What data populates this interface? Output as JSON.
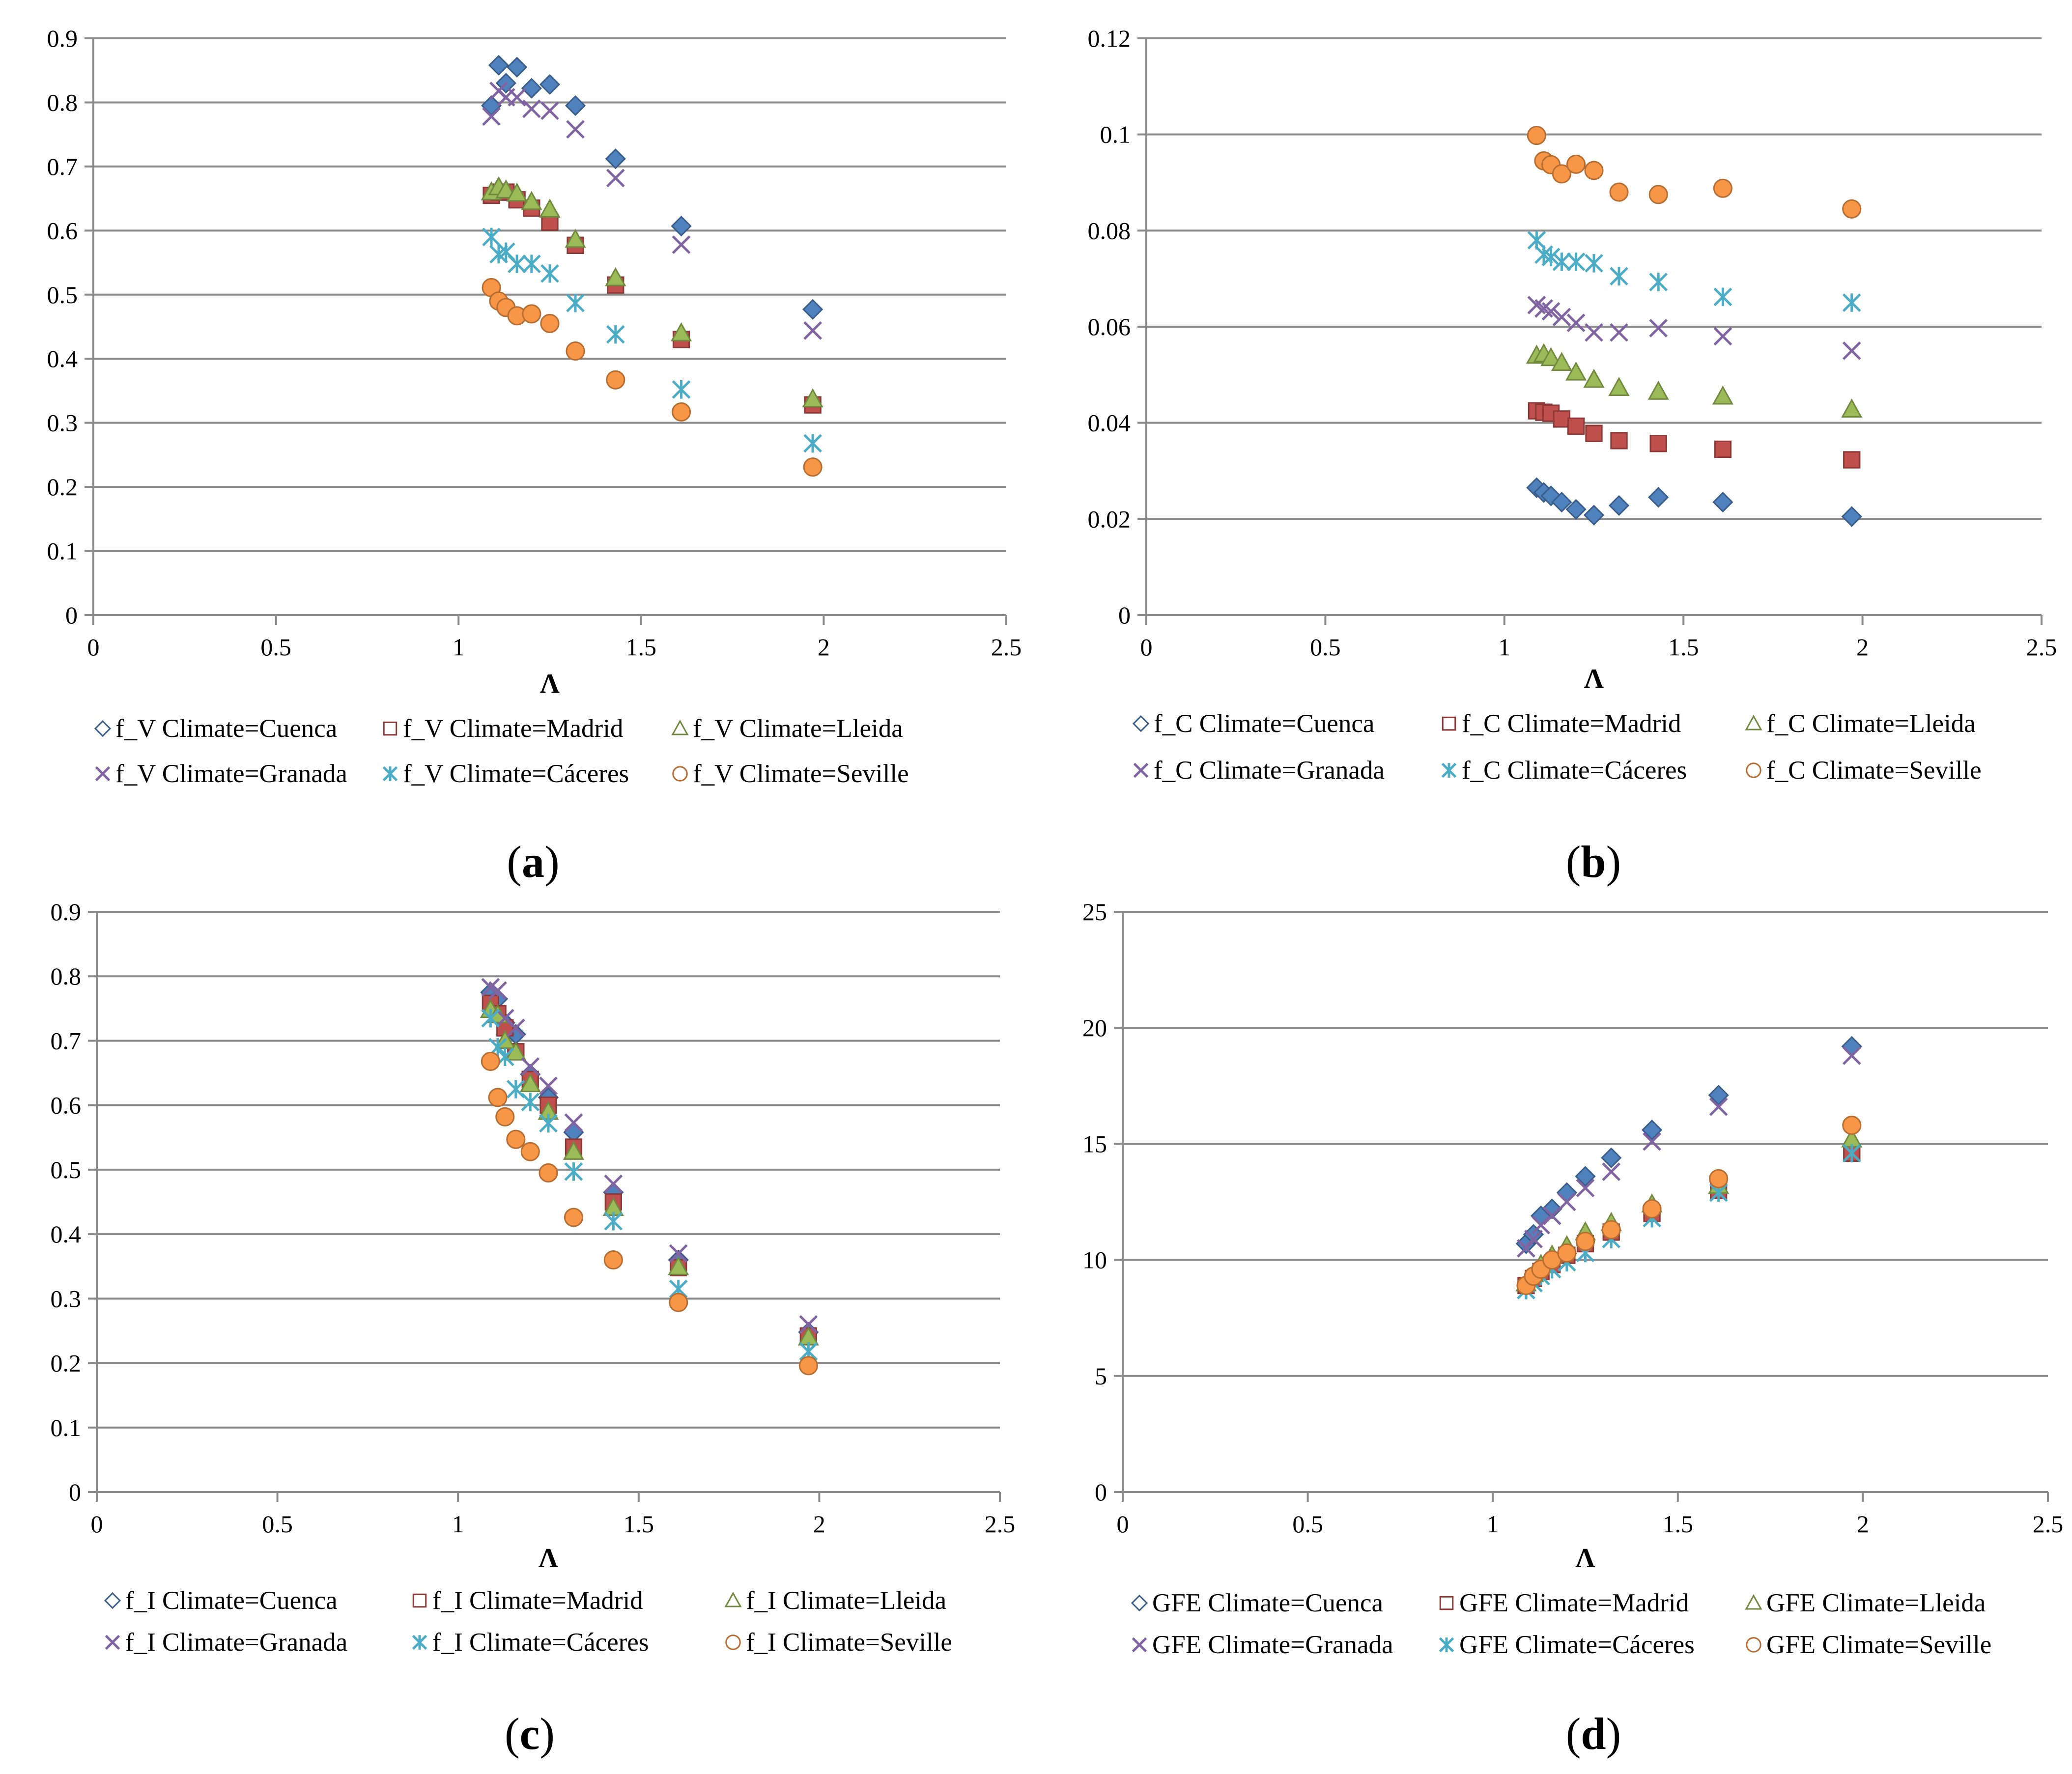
{
  "series_style": {
    "Cuenca": {
      "marker": "diamond-icon",
      "fill": "#4f81bd",
      "stroke": "#385d8a"
    },
    "Madrid": {
      "marker": "square-icon",
      "fill": "#c0504d",
      "stroke": "#8c3836"
    },
    "Lleida": {
      "marker": "triangle-icon",
      "fill": "#9bbb59",
      "stroke": "#71893f"
    },
    "Granada": {
      "marker": "x-icon",
      "fill": "none",
      "stroke": "#8064a2"
    },
    "Caceres": {
      "marker": "asterisk-icon",
      "fill": "none",
      "stroke": "#4bacc6"
    },
    "Seville": {
      "marker": "circle-icon",
      "fill": "#f79646",
      "stroke": "#b66d31"
    }
  },
  "chart_data": [
    {
      "id": "a",
      "type": "scatter",
      "panel_label": "(a)",
      "xlabel": "Λ",
      "xlim": [
        0,
        2.5
      ],
      "ylim": [
        0,
        0.9
      ],
      "xticks": [
        "0",
        "0.5",
        "1",
        "1.5",
        "2",
        "2.5"
      ],
      "yticks": [
        "0",
        "0.1",
        "0.2",
        "0.3",
        "0.4",
        "0.5",
        "0.6",
        "0.7",
        "0.8",
        "0.9"
      ],
      "legend": "bottom",
      "series": [
        {
          "key": "Cuenca",
          "name": "f_V Climate=Cuenca",
          "x": [
            1.09,
            1.11,
            1.13,
            1.16,
            1.2,
            1.25,
            1.32,
            1.43,
            1.61,
            1.97
          ],
          "y": [
            0.795,
            0.858,
            0.83,
            0.855,
            0.822,
            0.828,
            0.795,
            0.712,
            0.607,
            0.477
          ]
        },
        {
          "key": "Madrid",
          "name": "f_V Climate=Madrid",
          "x": [
            1.09,
            1.11,
            1.13,
            1.16,
            1.2,
            1.25,
            1.32,
            1.43,
            1.61,
            1.97
          ],
          "y": [
            0.655,
            0.66,
            0.66,
            0.648,
            0.635,
            0.613,
            0.577,
            0.515,
            0.43,
            0.328
          ]
        },
        {
          "key": "Lleida",
          "name": "f_V Climate=Lleida",
          "x": [
            1.09,
            1.11,
            1.13,
            1.16,
            1.2,
            1.25,
            1.32,
            1.43,
            1.61,
            1.97
          ],
          "y": [
            0.66,
            0.668,
            0.663,
            0.658,
            0.645,
            0.633,
            0.586,
            0.526,
            0.44,
            0.337
          ]
        },
        {
          "key": "Granada",
          "name": "f_V Climate=Granada",
          "x": [
            1.09,
            1.11,
            1.13,
            1.16,
            1.2,
            1.25,
            1.32,
            1.43,
            1.61,
            1.97
          ],
          "y": [
            0.778,
            0.818,
            0.808,
            0.808,
            0.79,
            0.787,
            0.758,
            0.682,
            0.578,
            0.444
          ]
        },
        {
          "key": "Caceres",
          "name": "f_V Climate=Cáceres",
          "x": [
            1.09,
            1.11,
            1.13,
            1.16,
            1.2,
            1.25,
            1.32,
            1.43,
            1.61,
            1.97
          ],
          "y": [
            0.59,
            0.563,
            0.567,
            0.548,
            0.548,
            0.533,
            0.487,
            0.438,
            0.352,
            0.268
          ]
        },
        {
          "key": "Seville",
          "name": "f_V Climate=Seville",
          "x": [
            1.09,
            1.11,
            1.13,
            1.16,
            1.2,
            1.25,
            1.32,
            1.43,
            1.61,
            1.97
          ],
          "y": [
            0.511,
            0.49,
            0.48,
            0.467,
            0.47,
            0.455,
            0.412,
            0.367,
            0.317,
            0.231
          ]
        }
      ]
    },
    {
      "id": "b",
      "type": "scatter",
      "panel_label": "(b)",
      "xlabel": "Λ",
      "xlim": [
        0,
        2.5
      ],
      "ylim": [
        0,
        0.12
      ],
      "xticks": [
        "0",
        "0.5",
        "1",
        "1.5",
        "2",
        "2.5"
      ],
      "yticks": [
        "0",
        "0.02",
        "0.04",
        "0.06",
        "0.08",
        "0.1",
        "0.12"
      ],
      "legend": "bottom",
      "series": [
        {
          "key": "Cuenca",
          "name": "f_C Climate=Cuenca",
          "x": [
            1.09,
            1.11,
            1.13,
            1.16,
            1.2,
            1.25,
            1.32,
            1.43,
            1.61,
            1.97
          ],
          "y": [
            0.0265,
            0.0255,
            0.0248,
            0.0235,
            0.022,
            0.0208,
            0.0228,
            0.0245,
            0.0235,
            0.0205
          ]
        },
        {
          "key": "Madrid",
          "name": "f_C Climate=Madrid",
          "x": [
            1.09,
            1.11,
            1.13,
            1.16,
            1.2,
            1.25,
            1.32,
            1.43,
            1.61,
            1.97
          ],
          "y": [
            0.0425,
            0.0422,
            0.042,
            0.0408,
            0.0393,
            0.0378,
            0.0363,
            0.0357,
            0.0345,
            0.0323
          ]
        },
        {
          "key": "Lleida",
          "name": "f_C Climate=Lleida",
          "x": [
            1.09,
            1.11,
            1.13,
            1.16,
            1.2,
            1.25,
            1.32,
            1.43,
            1.61,
            1.97
          ],
          "y": [
            0.054,
            0.0543,
            0.0535,
            0.0525,
            0.0505,
            0.049,
            0.0473,
            0.0465,
            0.0455,
            0.0428
          ]
        },
        {
          "key": "Granada",
          "name": "f_C Climate=Granada",
          "x": [
            1.09,
            1.11,
            1.13,
            1.16,
            1.2,
            1.25,
            1.32,
            1.43,
            1.61,
            1.97
          ],
          "y": [
            0.0645,
            0.0638,
            0.0632,
            0.062,
            0.0608,
            0.0588,
            0.0588,
            0.0597,
            0.058,
            0.055
          ]
        },
        {
          "key": "Caceres",
          "name": "f_C Climate=Cáceres",
          "x": [
            1.09,
            1.11,
            1.13,
            1.16,
            1.2,
            1.25,
            1.32,
            1.43,
            1.61,
            1.97
          ],
          "y": [
            0.078,
            0.075,
            0.0745,
            0.0735,
            0.0735,
            0.0732,
            0.0705,
            0.0693,
            0.0662,
            0.065
          ]
        },
        {
          "key": "Seville",
          "name": "f_C Climate=Seville",
          "x": [
            1.09,
            1.11,
            1.13,
            1.16,
            1.2,
            1.25,
            1.32,
            1.43,
            1.61,
            1.97
          ],
          "y": [
            0.0998,
            0.0945,
            0.0937,
            0.0918,
            0.0938,
            0.0925,
            0.088,
            0.0875,
            0.0888,
            0.0845
          ]
        }
      ]
    },
    {
      "id": "c",
      "type": "scatter",
      "panel_label": "(c)",
      "xlabel": "Λ",
      "xlim": [
        0,
        2.5
      ],
      "ylim": [
        0,
        0.9
      ],
      "xticks": [
        "0",
        "0.5",
        "1",
        "1.5",
        "2",
        "2.5"
      ],
      "yticks": [
        "0",
        "0.1",
        "0.2",
        "0.3",
        "0.4",
        "0.5",
        "0.6",
        "0.7",
        "0.8",
        "0.9"
      ],
      "legend": "bottom",
      "series": [
        {
          "key": "Cuenca",
          "name": "f_I Climate=Cuenca",
          "x": [
            1.09,
            1.11,
            1.13,
            1.16,
            1.2,
            1.25,
            1.32,
            1.43,
            1.61,
            1.97
          ],
          "y": [
            0.775,
            0.765,
            0.728,
            0.71,
            0.648,
            0.612,
            0.558,
            0.465,
            0.36,
            0.248
          ]
        },
        {
          "key": "Madrid",
          "name": "f_I Climate=Madrid",
          "x": [
            1.09,
            1.11,
            1.13,
            1.16,
            1.2,
            1.25,
            1.32,
            1.43,
            1.61,
            1.97
          ],
          "y": [
            0.758,
            0.742,
            0.72,
            0.683,
            0.64,
            0.6,
            0.535,
            0.45,
            0.348,
            0.242
          ]
        },
        {
          "key": "Lleida",
          "name": "f_I Climate=Lleida",
          "x": [
            1.09,
            1.11,
            1.13,
            1.16,
            1.2,
            1.25,
            1.32,
            1.43,
            1.61,
            1.97
          ],
          "y": [
            0.748,
            0.74,
            0.7,
            0.682,
            0.633,
            0.59,
            0.528,
            0.441,
            0.349,
            0.24
          ]
        },
        {
          "key": "Granada",
          "name": "f_I Climate=Granada",
          "x": [
            1.09,
            1.11,
            1.13,
            1.16,
            1.2,
            1.25,
            1.32,
            1.43,
            1.61,
            1.97
          ],
          "y": [
            0.783,
            0.778,
            0.735,
            0.72,
            0.66,
            0.63,
            0.573,
            0.478,
            0.37,
            0.26
          ]
        },
        {
          "key": "Caceres",
          "name": "f_I Climate=Cáceres",
          "x": [
            1.09,
            1.11,
            1.13,
            1.16,
            1.2,
            1.25,
            1.32,
            1.43,
            1.61,
            1.97
          ],
          "y": [
            0.735,
            0.69,
            0.675,
            0.625,
            0.605,
            0.572,
            0.497,
            0.42,
            0.315,
            0.218
          ]
        },
        {
          "key": "Seville",
          "name": "f_I Climate=Seville",
          "x": [
            1.09,
            1.11,
            1.13,
            1.16,
            1.2,
            1.25,
            1.32,
            1.43,
            1.61,
            1.97
          ],
          "y": [
            0.668,
            0.612,
            0.582,
            0.547,
            0.528,
            0.495,
            0.426,
            0.36,
            0.294,
            0.196
          ]
        }
      ]
    },
    {
      "id": "d",
      "type": "scatter",
      "panel_label": "(d)",
      "xlabel": "Λ",
      "xlim": [
        0,
        2.5
      ],
      "ylim": [
        0,
        25
      ],
      "xticks": [
        "0",
        "0.5",
        "1",
        "1.5",
        "2",
        "2.5"
      ],
      "yticks": [
        "0",
        "5",
        "10",
        "15",
        "20",
        "25"
      ],
      "legend": "bottom",
      "series": [
        {
          "key": "Cuenca",
          "name": "GFE Climate=Cuenca",
          "x": [
            1.09,
            1.11,
            1.13,
            1.16,
            1.2,
            1.25,
            1.32,
            1.43,
            1.61,
            1.97
          ],
          "y": [
            10.7,
            11.1,
            11.9,
            12.2,
            12.9,
            13.6,
            14.4,
            15.6,
            17.1,
            19.2
          ]
        },
        {
          "key": "Madrid",
          "name": "GFE Climate=Madrid",
          "x": [
            1.09,
            1.11,
            1.13,
            1.16,
            1.2,
            1.25,
            1.32,
            1.43,
            1.61,
            1.97
          ],
          "y": [
            8.9,
            9.2,
            9.5,
            9.8,
            10.2,
            10.7,
            11.2,
            12.0,
            13.0,
            14.6
          ]
        },
        {
          "key": "Lleida",
          "name": "GFE Climate=Lleida",
          "x": [
            1.09,
            1.11,
            1.13,
            1.16,
            1.2,
            1.25,
            1.32,
            1.43,
            1.61,
            1.97
          ],
          "y": [
            9.0,
            9.4,
            9.8,
            10.2,
            10.6,
            11.2,
            11.6,
            12.4,
            13.2,
            15.2
          ]
        },
        {
          "key": "Granada",
          "name": "GFE Climate=Granada",
          "x": [
            1.09,
            1.11,
            1.13,
            1.16,
            1.2,
            1.25,
            1.32,
            1.43,
            1.61,
            1.97
          ],
          "y": [
            10.5,
            10.9,
            11.5,
            11.9,
            12.5,
            13.1,
            13.8,
            15.1,
            16.6,
            18.8
          ]
        },
        {
          "key": "Caceres",
          "name": "GFE Climate=Cáceres",
          "x": [
            1.09,
            1.11,
            1.13,
            1.16,
            1.2,
            1.25,
            1.32,
            1.43,
            1.61,
            1.97
          ],
          "y": [
            8.7,
            9.0,
            9.3,
            9.6,
            9.9,
            10.3,
            10.9,
            11.8,
            12.9,
            14.6
          ]
        },
        {
          "key": "Seville",
          "name": "GFE Climate=Seville",
          "x": [
            1.09,
            1.11,
            1.13,
            1.16,
            1.2,
            1.25,
            1.32,
            1.43,
            1.61,
            1.97
          ],
          "y": [
            8.9,
            9.3,
            9.6,
            10.0,
            10.3,
            10.8,
            11.3,
            12.2,
            13.5,
            15.8
          ]
        }
      ]
    }
  ]
}
